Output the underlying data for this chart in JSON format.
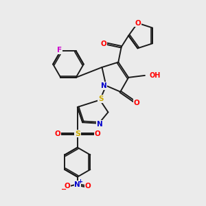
{
  "background_color": "#ebebeb",
  "figsize": [
    3.0,
    3.0
  ],
  "dpi": 100,
  "bond_color": "#1a1a1a",
  "atom_colors": {
    "O": "#ff0000",
    "N": "#0000cc",
    "S": "#ccaa00",
    "F": "#cc00cc",
    "H_color": "#4a7070",
    "C": "#1a1a1a"
  },
  "bond_width": 1.4,
  "bg": "#ebebeb"
}
